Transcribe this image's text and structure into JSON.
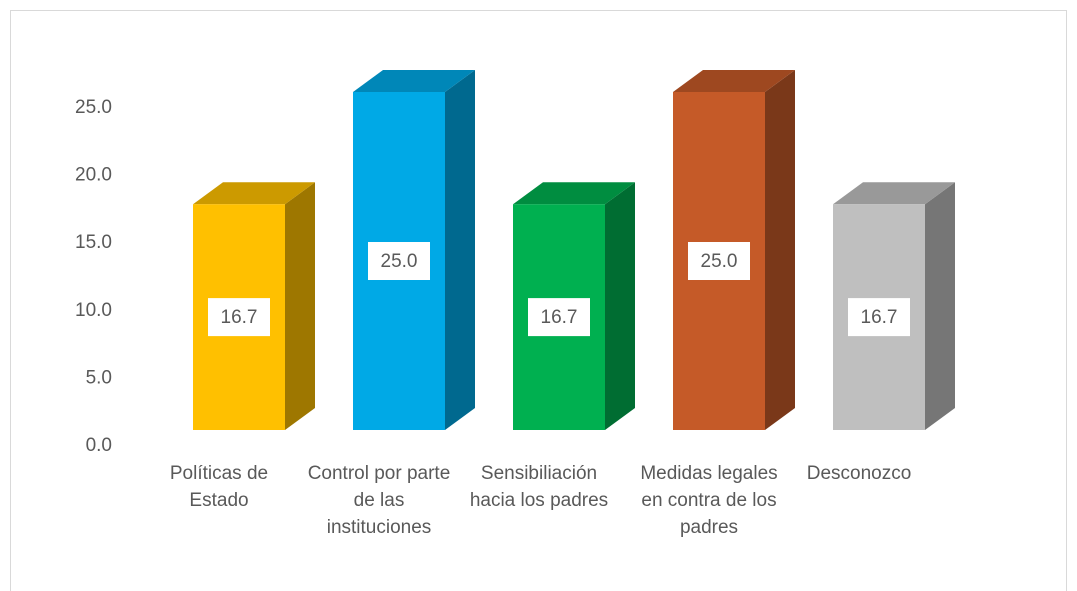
{
  "chart_data": {
    "type": "bar3d",
    "categories": [
      "Políticas de Estado",
      "Control por parte de las instituciones",
      "Sensibiliación hacia los padres",
      "Medidas legales en contra de los padres",
      "Desconozco"
    ],
    "values": [
      16.7,
      25,
      16.7,
      25,
      16.7
    ],
    "value_labels": [
      "16.7",
      "25.0",
      "16.7",
      "25.0",
      "16.7"
    ],
    "colors": [
      "#ffc000",
      "#00a9e6",
      "#00b050",
      "#c55a28",
      "#bfbfbf"
    ],
    "ylim": [
      0,
      25
    ],
    "yticks": [
      {
        "value": 0,
        "label": "0.0"
      },
      {
        "value": 5,
        "label": "5.0"
      },
      {
        "value": 10,
        "label": "10.0"
      },
      {
        "value": 15,
        "label": "15.0"
      },
      {
        "value": 20,
        "label": "20.0"
      },
      {
        "value": 25,
        "label": "25.0"
      }
    ]
  }
}
